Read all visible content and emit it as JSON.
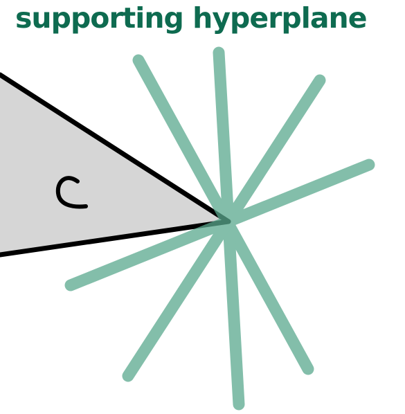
{
  "title": "supporting hyperplane",
  "set_label": "C",
  "colors": {
    "title": "#0e6b50",
    "hyperplane": "#5aa98e",
    "set_fill": "#d6d6d6",
    "set_edge": "#000000"
  },
  "hyperplanes": [
    {
      "name": "hyperplane-line-1"
    },
    {
      "name": "hyperplane-line-2"
    },
    {
      "name": "hyperplane-line-3"
    },
    {
      "name": "hyperplane-line-4"
    }
  ]
}
